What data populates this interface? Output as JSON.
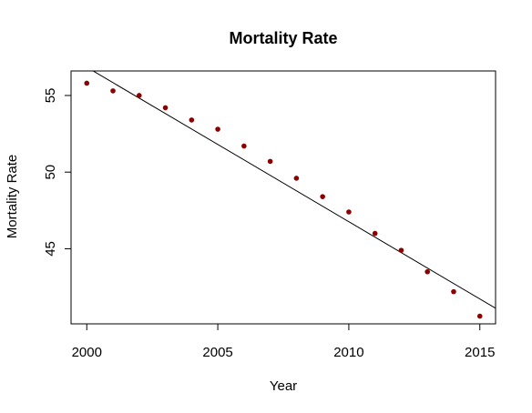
{
  "chart_data": {
    "type": "scatter",
    "title": "Mortality Rate",
    "xlabel": "Year",
    "ylabel": "Mortality Rate",
    "xlim": [
      1999.4,
      2015.6
    ],
    "ylim": [
      40.1,
      56.6
    ],
    "xticks": [
      2000,
      2005,
      2010,
      2015
    ],
    "yticks": [
      45,
      50,
      55
    ],
    "grid": false,
    "point_color": "#8b0000",
    "line_color": "#000000",
    "series": [
      {
        "x": [
          2000,
          2001,
          2002,
          2003,
          2004,
          2005,
          2006,
          2007,
          2008,
          2009,
          2010,
          2011,
          2012,
          2013,
          2014,
          2015
        ],
        "y": [
          55.8,
          55.3,
          55.0,
          54.2,
          53.4,
          52.8,
          51.7,
          50.7,
          49.6,
          48.4,
          47.4,
          46.0,
          44.9,
          43.5,
          42.2,
          40.6
        ]
      }
    ],
    "fit_line": {
      "x": [
        1999.4,
        2015.6
      ],
      "y": [
        57.45,
        41.12
      ]
    }
  }
}
